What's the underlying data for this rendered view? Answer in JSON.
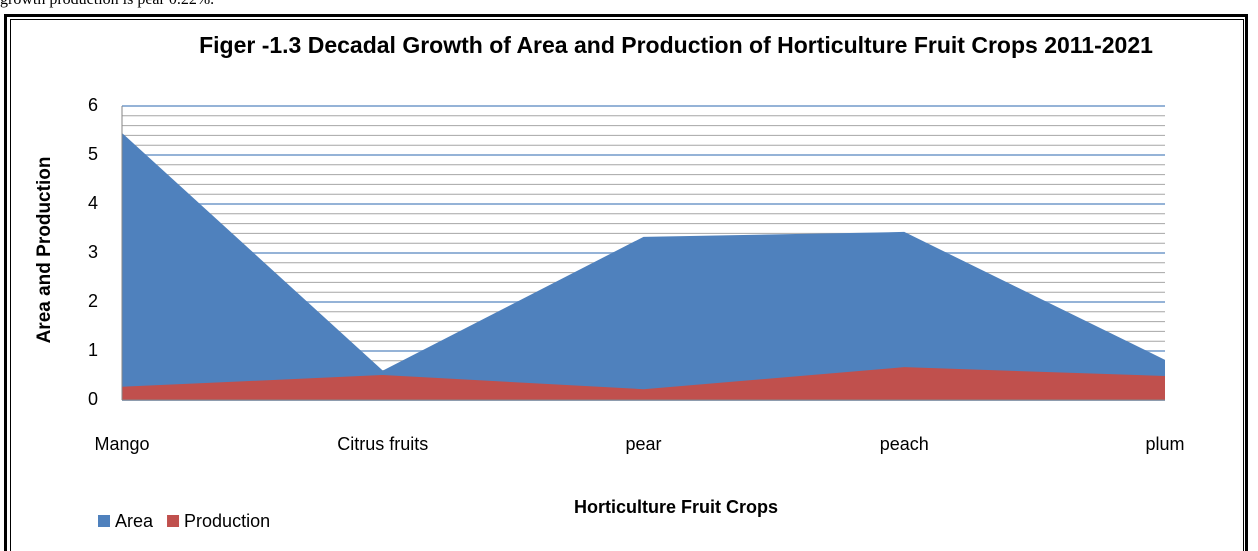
{
  "document_text": "growth production is pear 0.22%.",
  "chart_data": {
    "type": "area",
    "title": "Figer -1.3 Decadal Growth of Area and Production  of Horticulture Fruit Crops 2011-2021",
    "x_label": "Horticulture Fruit Crops",
    "y_label": "Area and Production",
    "categories": [
      "Mango",
      "Citrus fruits",
      "pear",
      "peach",
      "plum"
    ],
    "series": [
      {
        "name": "Area",
        "color": "#4f81bd",
        "values": [
          5.45,
          0.6,
          3.33,
          3.43,
          0.82
        ]
      },
      {
        "name": "Production",
        "color": "#c0504d",
        "values": [
          0.27,
          0.51,
          0.22,
          0.67,
          0.49
        ]
      }
    ],
    "ylim": [
      0,
      6
    ],
    "yticks": [
      0,
      1,
      2,
      3,
      4,
      5,
      6
    ],
    "grid": true,
    "minor_grid": true,
    "legend": "bottom-left"
  }
}
